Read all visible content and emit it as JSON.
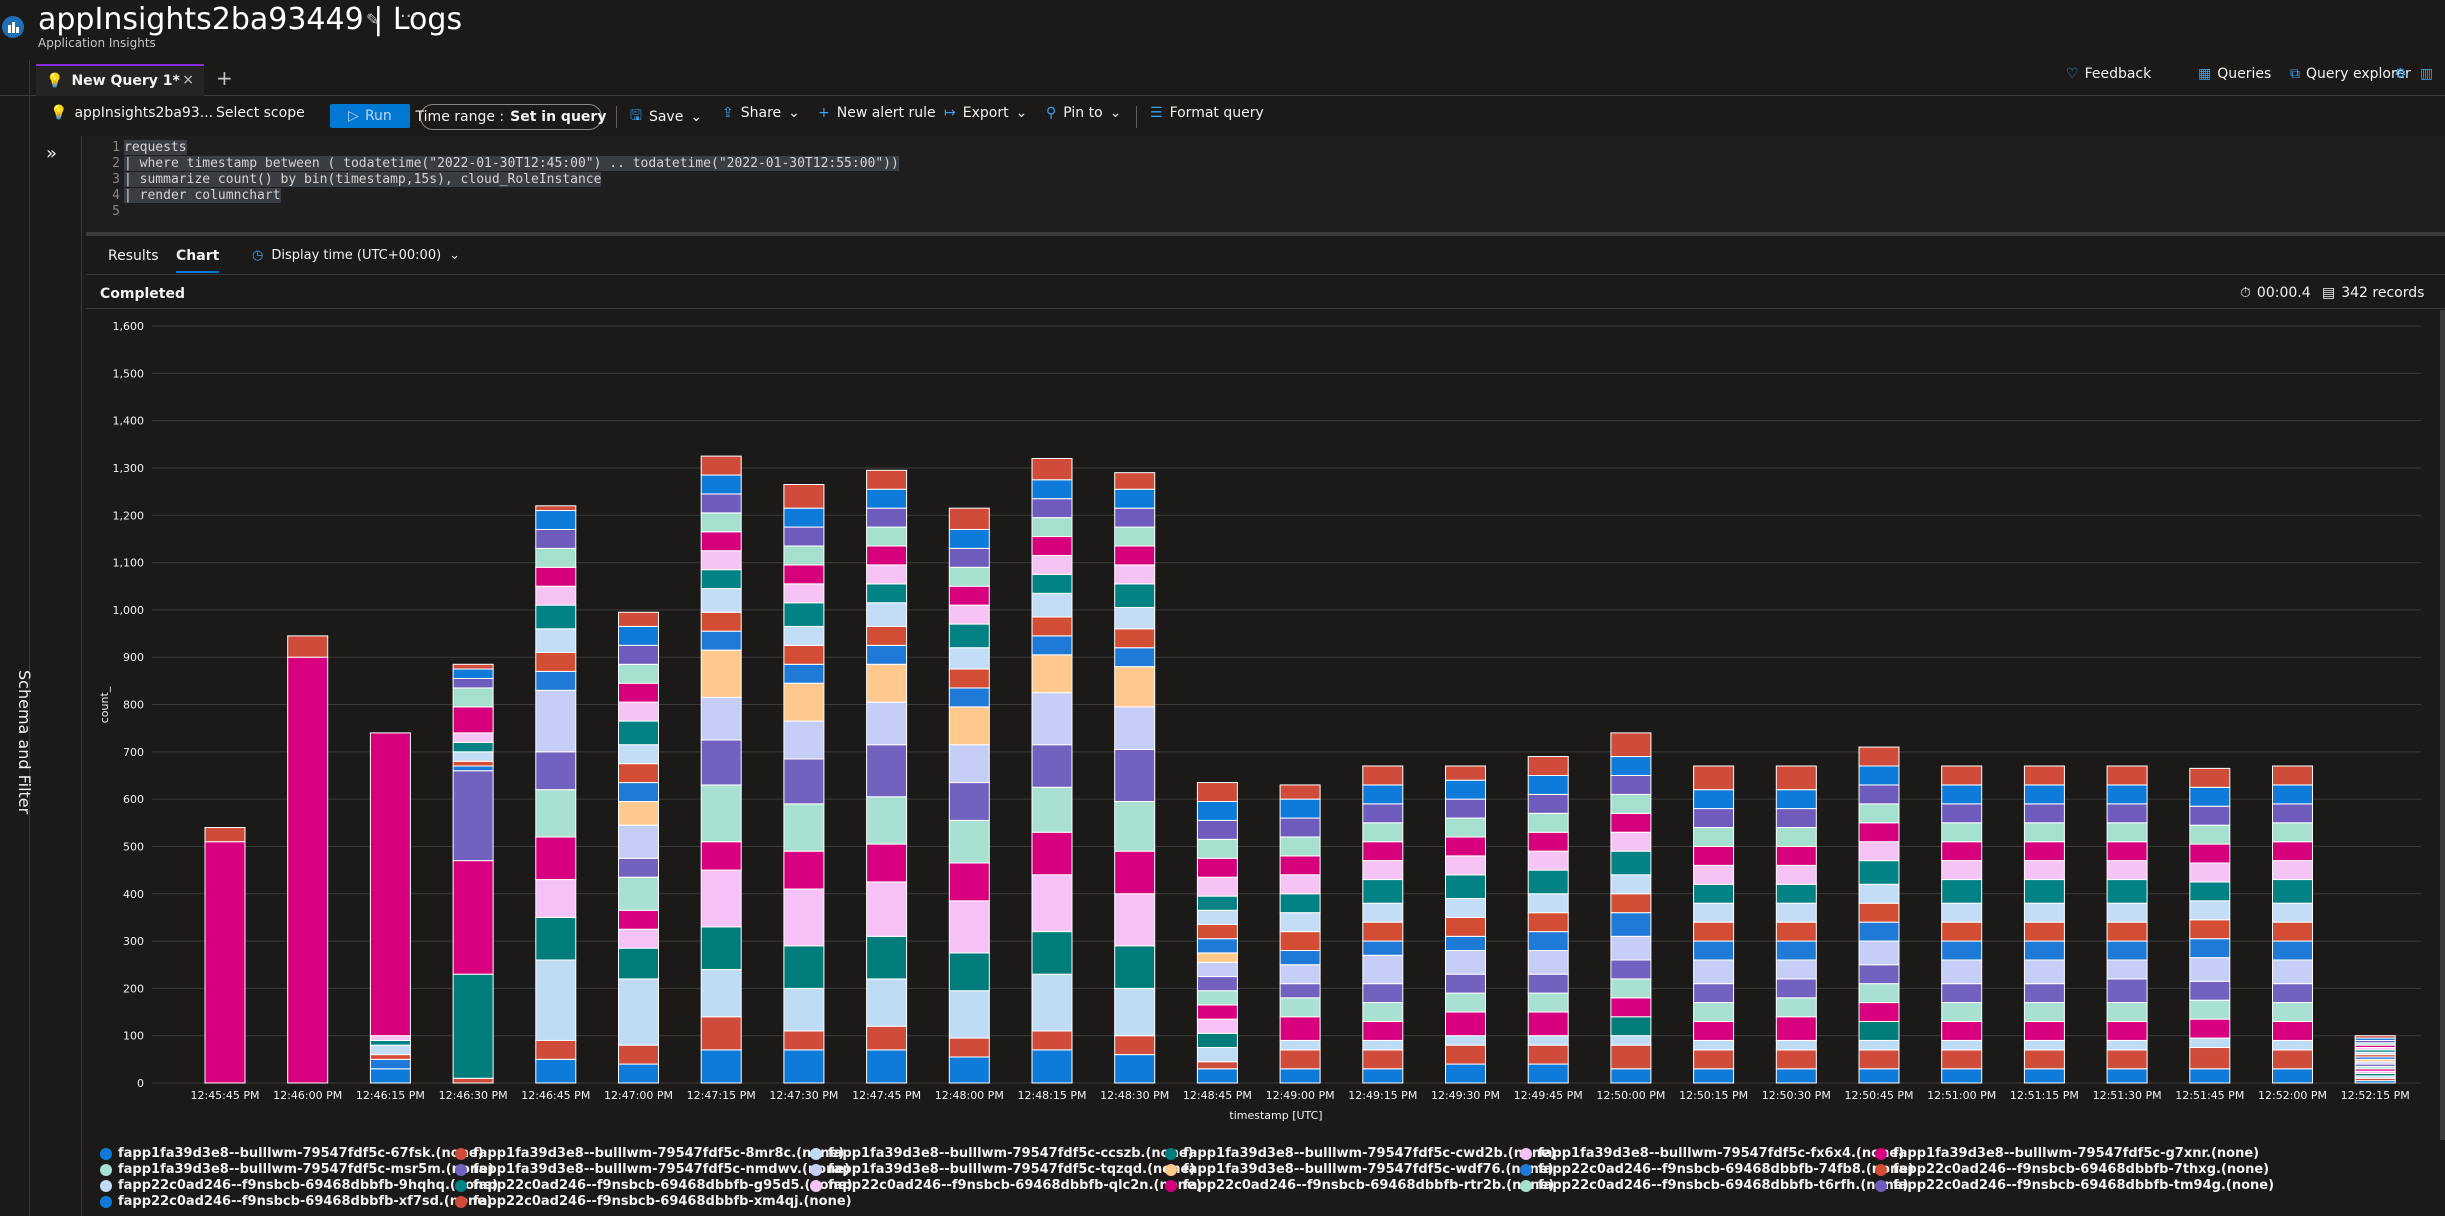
{
  "header": {
    "title": "appInsights2ba93449 | Logs",
    "subtitle": "Application Insights"
  },
  "tabs": [
    {
      "label": "New Query 1*"
    }
  ],
  "topright": {
    "feedback": "Feedback",
    "queries": "Queries",
    "query_explorer": "Query explorer"
  },
  "toolbar": {
    "scope_name": "appInsights2ba93...",
    "select_scope": "Select scope",
    "run": "Run",
    "time_range_label": "Time range :",
    "time_range_value": "Set in query",
    "save": "Save",
    "share": "Share",
    "new_alert_rule": "New alert rule",
    "export": "Export",
    "pin_to": "Pin to",
    "format_query": "Format query"
  },
  "sidebar": {
    "schema_filter": "Schema and Filter"
  },
  "editor": {
    "line_numbers": [
      "1",
      "2",
      "3",
      "4",
      "5"
    ],
    "lines": [
      "requests",
      "| where timestamp between ( todatetime(\"2022-01-30T12:45:00\") .. todatetime(\"2022-01-30T12:55:00\"))",
      "| summarize count() by bin(timestamp,15s), cloud_RoleInstance",
      "| render columnchart",
      ""
    ]
  },
  "results": {
    "tab_results": "Results",
    "tab_chart": "Chart",
    "display_time": "Display time (UTC+00:00)",
    "status": "Completed",
    "elapsed": "00:00.4",
    "records": "342 records"
  },
  "colors": [
    "#0e7ad9",
    "#cf4b3a",
    "#bfdcf5",
    "#007c7b",
    "#f5c1f7",
    "#d9007f",
    "#a8e1d2",
    "#7261be",
    "#c6cdf6",
    "#ffc98e",
    "#1f79d6",
    "#d34d35",
    "#c3ddf7",
    "#038285",
    "#f5c3f4",
    "#d6007d",
    "#a5e0cf",
    "#6e5bbc"
  ],
  "chart_data": {
    "type": "bar",
    "stacked": true,
    "xlabel": "timestamp [UTC]",
    "ylabel": "count_",
    "ylim": [
      0,
      1600
    ],
    "yticks": [
      0,
      100,
      200,
      300,
      400,
      500,
      600,
      700,
      800,
      900,
      1000,
      1100,
      1200,
      1300,
      1400,
      1500,
      1600
    ],
    "ytick_labels": [
      "0",
      "100",
      "200",
      "300",
      "400",
      "500",
      "600",
      "700",
      "800",
      "900",
      "1,000",
      "1,100",
      "1,200",
      "1,300",
      "1,400",
      "1,500",
      "1,600"
    ],
    "grid": true,
    "legend": "bottom",
    "categories": [
      "12:45:45 PM",
      "12:46:00 PM",
      "12:46:15 PM",
      "12:46:30 PM",
      "12:46:45 PM",
      "12:47:00 PM",
      "12:47:15 PM",
      "12:47:30 PM",
      "12:47:45 PM",
      "12:48:00 PM",
      "12:48:15 PM",
      "12:48:30 PM",
      "12:48:45 PM",
      "12:49:00 PM",
      "12:49:15 PM",
      "12:49:30 PM",
      "12:49:45 PM",
      "12:50:00 PM",
      "12:50:15 PM",
      "12:50:30 PM",
      "12:50:45 PM",
      "12:51:00 PM",
      "12:51:15 PM",
      "12:51:30 PM",
      "12:51:45 PM",
      "12:52:00 PM",
      "12:52:15 PM"
    ],
    "series": [
      {
        "name": "fapp1fa39d3e8--bulllwm-79547fdf5c-67fsk.(none)",
        "values": [
          0,
          0,
          30,
          0,
          50,
          40,
          70,
          70,
          70,
          55,
          70,
          60,
          30,
          30,
          30,
          40,
          40,
          30,
          30,
          30,
          30,
          30,
          30,
          30,
          30,
          30,
          5
        ]
      },
      {
        "name": "fapp1fa39d3e8--bulllwm-79547fdf5c-8mr8c.(none)",
        "values": [
          0,
          0,
          0,
          10,
          40,
          40,
          70,
          40,
          50,
          40,
          40,
          40,
          15,
          40,
          40,
          40,
          40,
          50,
          40,
          40,
          40,
          40,
          40,
          40,
          45,
          40,
          5
        ]
      },
      {
        "name": "fapp1fa39d3e8--bulllwm-79547fdf5c-ccszb.(none)",
        "values": [
          0,
          0,
          0,
          0,
          170,
          140,
          100,
          90,
          100,
          100,
          120,
          100,
          30,
          20,
          20,
          20,
          20,
          20,
          20,
          20,
          20,
          20,
          20,
          20,
          20,
          20,
          5
        ]
      },
      {
        "name": "fapp1fa39d3e8--bulllwm-79547fdf5c-cwd2b.(none)",
        "values": [
          0,
          0,
          0,
          220,
          90,
          65,
          90,
          90,
          90,
          80,
          90,
          90,
          30,
          0,
          0,
          0,
          0,
          40,
          0,
          0,
          40,
          0,
          0,
          0,
          0,
          0,
          5
        ]
      },
      {
        "name": "fapp1fa39d3e8--bulllwm-79547fdf5c-fx6x4.(none)",
        "values": [
          0,
          0,
          0,
          0,
          80,
          40,
          120,
          120,
          115,
          110,
          120,
          110,
          30,
          0,
          0,
          0,
          0,
          0,
          0,
          0,
          0,
          0,
          0,
          0,
          0,
          0,
          5
        ]
      },
      {
        "name": "fapp1fa39d3e8--bulllwm-79547fdf5c-g7xnr.(none)",
        "values": [
          510,
          900,
          0,
          240,
          90,
          40,
          60,
          80,
          80,
          80,
          90,
          90,
          30,
          50,
          40,
          50,
          50,
          40,
          40,
          50,
          40,
          40,
          40,
          40,
          40,
          40,
          5
        ]
      },
      {
        "name": "fapp1fa39d3e8--bulllwm-79547fdf5c-msr5m.(none)",
        "values": [
          0,
          0,
          0,
          0,
          100,
          70,
          120,
          100,
          100,
          90,
          95,
          105,
          30,
          40,
          40,
          40,
          40,
          40,
          40,
          40,
          40,
          40,
          40,
          40,
          40,
          40,
          5
        ]
      },
      {
        "name": "fapp1fa39d3e8--bulllwm-79547fdf5c-nmdwv.(none)",
        "values": [
          0,
          0,
          0,
          190,
          80,
          40,
          95,
          95,
          110,
          80,
          90,
          110,
          30,
          30,
          40,
          40,
          40,
          40,
          40,
          40,
          40,
          40,
          40,
          50,
          40,
          40,
          5
        ]
      },
      {
        "name": "fapp1fa39d3e8--bulllwm-79547fdf5c-tqzqd.(none)",
        "values": [
          0,
          0,
          0,
          0,
          130,
          70,
          90,
          80,
          90,
          80,
          110,
          90,
          30,
          40,
          60,
          50,
          50,
          50,
          50,
          40,
          50,
          50,
          50,
          40,
          50,
          50,
          5
        ]
      },
      {
        "name": "fapp1fa39d3e8--bulllwm-79547fdf5c-wdf76.(none)",
        "values": [
          0,
          0,
          0,
          0,
          0,
          50,
          100,
          80,
          80,
          80,
          80,
          85,
          20,
          0,
          0,
          0,
          0,
          0,
          0,
          0,
          0,
          0,
          0,
          0,
          0,
          0,
          5
        ]
      },
      {
        "name": "fapp22c0ad246--f9nsbcb-69468dbbfb-74fb8.(none)",
        "values": [
          0,
          0,
          20,
          10,
          40,
          40,
          40,
          40,
          40,
          40,
          40,
          40,
          30,
          30,
          30,
          30,
          40,
          50,
          40,
          40,
          40,
          40,
          40,
          40,
          40,
          40,
          5
        ]
      },
      {
        "name": "fapp22c0ad246--f9nsbcb-69468dbbfb-7thxg.(none)",
        "values": [
          0,
          0,
          10,
          10,
          40,
          40,
          40,
          40,
          40,
          40,
          40,
          40,
          30,
          40,
          40,
          40,
          40,
          40,
          40,
          40,
          40,
          40,
          40,
          40,
          40,
          40,
          5
        ]
      },
      {
        "name": "fapp22c0ad246--f9nsbcb-69468dbbfb-9hqhq.(none)",
        "values": [
          0,
          0,
          20,
          20,
          50,
          40,
          50,
          40,
          50,
          45,
          50,
          45,
          30,
          40,
          40,
          40,
          40,
          40,
          40,
          40,
          40,
          40,
          40,
          40,
          40,
          40,
          5
        ]
      },
      {
        "name": "fapp22c0ad246--f9nsbcb-69468dbbfb-g95d5.(none)",
        "values": [
          0,
          0,
          10,
          20,
          50,
          50,
          40,
          50,
          40,
          50,
          40,
          50,
          30,
          40,
          50,
          50,
          50,
          50,
          40,
          40,
          50,
          50,
          50,
          50,
          40,
          50,
          5
        ]
      },
      {
        "name": "fapp22c0ad246--f9nsbcb-69468dbbfb-qlc2n.(none)",
        "values": [
          0,
          0,
          10,
          20,
          40,
          40,
          40,
          40,
          40,
          40,
          40,
          40,
          40,
          40,
          40,
          40,
          40,
          40,
          40,
          40,
          40,
          40,
          40,
          40,
          40,
          40,
          5
        ]
      },
      {
        "name": "fapp22c0ad246--f9nsbcb-69468dbbfb-rtr2b.(none)",
        "values": [
          0,
          0,
          640,
          55,
          40,
          40,
          40,
          40,
          40,
          40,
          40,
          40,
          40,
          40,
          40,
          40,
          40,
          40,
          40,
          40,
          40,
          40,
          40,
          40,
          40,
          40,
          5
        ]
      },
      {
        "name": "fapp22c0ad246--f9nsbcb-69468dbbfb-t6rfh.(none)",
        "values": [
          0,
          0,
          0,
          40,
          40,
          40,
          40,
          40,
          40,
          40,
          40,
          40,
          40,
          40,
          40,
          40,
          40,
          40,
          40,
          40,
          40,
          40,
          40,
          40,
          40,
          40,
          5
        ]
      },
      {
        "name": "fapp22c0ad246--f9nsbcb-69468dbbfb-tm94g.(none)",
        "values": [
          0,
          0,
          0,
          20,
          40,
          40,
          40,
          40,
          40,
          40,
          40,
          40,
          40,
          40,
          40,
          40,
          40,
          40,
          40,
          40,
          40,
          40,
          40,
          40,
          40,
          40,
          5
        ]
      },
      {
        "name": "fapp22c0ad246--f9nsbcb-69468dbbfb-xf7sd.(none)",
        "values": [
          0,
          0,
          0,
          20,
          40,
          40,
          40,
          40,
          40,
          40,
          40,
          40,
          40,
          40,
          40,
          40,
          40,
          40,
          40,
          40,
          40,
          40,
          40,
          40,
          40,
          40,
          5
        ]
      },
      {
        "name": "fapp22c0ad246--f9nsbcb-69468dbbfb-xm4qj.(none)",
        "values": [
          30,
          45,
          0,
          10,
          10,
          30,
          40,
          50,
          40,
          45,
          45,
          35,
          40,
          30,
          40,
          30,
          40,
          50,
          50,
          50,
          40,
          40,
          40,
          40,
          40,
          40,
          5
        ]
      }
    ]
  }
}
